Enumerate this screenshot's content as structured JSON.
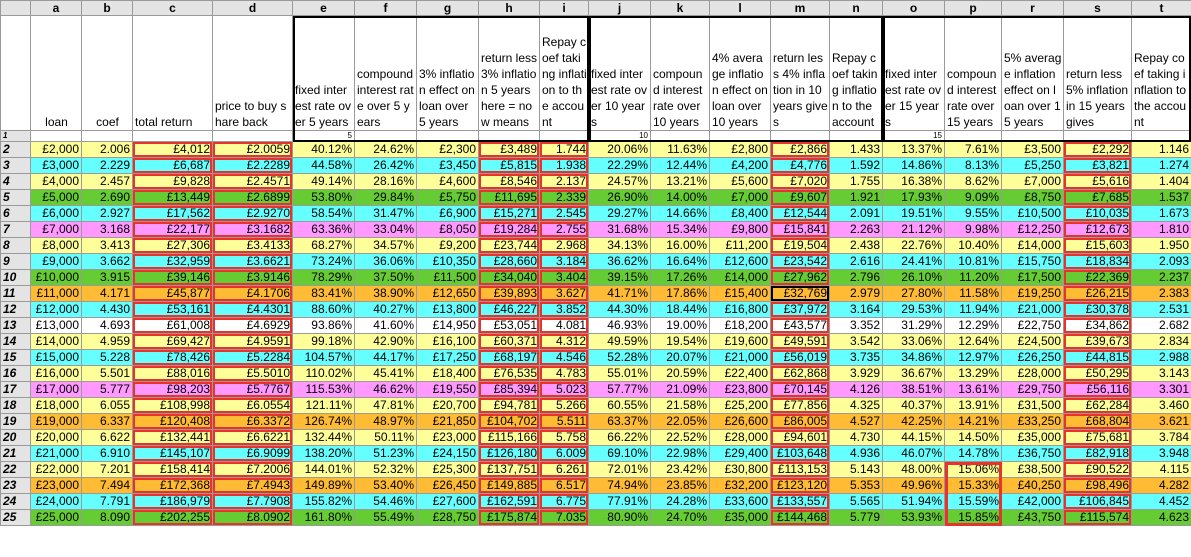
{
  "columns": [
    "a",
    "b",
    "c",
    "d",
    "e",
    "f",
    "g",
    "h",
    "i",
    "j",
    "k",
    "l",
    "m",
    "n",
    "o",
    "p",
    "r",
    "s",
    "t"
  ],
  "labels": [
    "loan",
    "coef",
    "total return",
    "price to buy share back",
    "fixed interest rate over 5 years",
    "compound interest rate over 5 years",
    "3% inflation effect on loan over 5 years",
    "return less 3% inflation 5 years here = now means",
    "Repay coef taking inflation to the account",
    "fixed interest rate over 10 years",
    "compound interest rate over 10 years",
    "4% average inflation effect on loan over 10 years",
    "return less 4% inflation in 10 years gives",
    "Repay coef taking inflation to the account",
    "fixed interest rate over 15 years",
    "compound interest rate over 15 years",
    "5% average inflation effect on loan over 15 years",
    "return less 5% inflation in 15 years gives",
    "Repay coef taking inflation to the account"
  ],
  "index_row": {
    "row": "1",
    "e": "5",
    "j": "10",
    "o": "15"
  },
  "colors": {
    "yellow": "#ffff99",
    "cyan": "#66ffff",
    "green": "#66cc33",
    "white": "#ffffff",
    "pink": "#ff99ff",
    "orange": "#ffbb33",
    "red_border": "#e8322c"
  },
  "rows": [
    {
      "n": "2",
      "color": "yellow",
      "cells": [
        "£2,000",
        "2.006",
        "£4,012",
        "£2.0059",
        "40.12%",
        "24.62%",
        "£2,300",
        "£3,489",
        "1.744",
        "20.06%",
        "11.63%",
        "£2,800",
        "£2,866",
        "1.433",
        "13.37%",
        "7.61%",
        "£3,500",
        "£2,292",
        "1.146"
      ]
    },
    {
      "n": "3",
      "color": "cyan",
      "cells": [
        "£3,000",
        "2.229",
        "£6,687",
        "£2.2289",
        "44.58%",
        "26.42%",
        "£3,450",
        "£5,815",
        "1.938",
        "22.29%",
        "12.44%",
        "£4,200",
        "£4,776",
        "1.592",
        "14.86%",
        "8.13%",
        "£5,250",
        "£3,821",
        "1.274"
      ]
    },
    {
      "n": "4",
      "color": "yellow",
      "cells": [
        "£4,000",
        "2.457",
        "£9,828",
        "£2.4571",
        "49.14%",
        "28.16%",
        "£4,600",
        "£8,546",
        "2.137",
        "24.57%",
        "13.21%",
        "£5,600",
        "£7,020",
        "1.755",
        "16.38%",
        "8.62%",
        "£7,000",
        "£5,616",
        "1.404"
      ]
    },
    {
      "n": "5",
      "color": "green",
      "cells": [
        "£5,000",
        "2.690",
        "£13,449",
        "£2.6899",
        "53.80%",
        "29.84%",
        "£5,750",
        "£11,695",
        "2.339",
        "26.90%",
        "14.00%",
        "£7,000",
        "£9,607",
        "1.921",
        "17.93%",
        "9.09%",
        "£8,750",
        "£7,685",
        "1.537"
      ]
    },
    {
      "n": "6",
      "color": "cyan",
      "cells": [
        "£6,000",
        "2.927",
        "£17,562",
        "£2.9270",
        "58.54%",
        "31.47%",
        "£6,900",
        "£15,271",
        "2.545",
        "29.27%",
        "14.66%",
        "£8,400",
        "£12,544",
        "2.091",
        "19.51%",
        "9.55%",
        "£10,500",
        "£10,035",
        "1.673"
      ]
    },
    {
      "n": "7",
      "color": "pink",
      "cells": [
        "£7,000",
        "3.168",
        "£22,177",
        "£3.1682",
        "63.36%",
        "33.04%",
        "£8,050",
        "£19,284",
        "2.755",
        "31.68%",
        "15.34%",
        "£9,800",
        "£15,841",
        "2.263",
        "21.12%",
        "9.98%",
        "£12,250",
        "£12,673",
        "1.810"
      ]
    },
    {
      "n": "8",
      "color": "yellow",
      "cells": [
        "£8,000",
        "3.413",
        "£27,306",
        "£3.4133",
        "68.27%",
        "34.57%",
        "£9,200",
        "£23,744",
        "2.968",
        "34.13%",
        "16.00%",
        "£11,200",
        "£19,504",
        "2.438",
        "22.76%",
        "10.40%",
        "£14,000",
        "£15,603",
        "1.950"
      ]
    },
    {
      "n": "9",
      "color": "cyan",
      "cells": [
        "£9,000",
        "3.662",
        "£32,959",
        "£3.6621",
        "73.24%",
        "36.06%",
        "£10,350",
        "£28,660",
        "3.184",
        "36.62%",
        "16.64%",
        "£12,600",
        "£23,542",
        "2.616",
        "24.41%",
        "10.81%",
        "£15,750",
        "£18,834",
        "2.093"
      ]
    },
    {
      "n": "10",
      "color": "green",
      "cells": [
        "£10,000",
        "3.915",
        "£39,146",
        "£3.9146",
        "78.29%",
        "37.50%",
        "£11,500",
        "£34,040",
        "3.404",
        "39.15%",
        "17.26%",
        "£14,000",
        "£27,962",
        "2.796",
        "26.10%",
        "11.20%",
        "£17,500",
        "£22,369",
        "2.237"
      ]
    },
    {
      "n": "11",
      "color": "orange",
      "cells": [
        "£11,000",
        "4.171",
        "£45,877",
        "£4.1706",
        "83.41%",
        "38.90%",
        "£12,650",
        "£39,893",
        "3.627",
        "41.71%",
        "17.86%",
        "£15,400",
        "£32,769",
        "2.979",
        "27.80%",
        "11.58%",
        "£19,250",
        "£26,215",
        "2.383"
      ]
    },
    {
      "n": "12",
      "color": "cyan",
      "cells": [
        "£12,000",
        "4.430",
        "£53,161",
        "£4.4301",
        "88.60%",
        "40.27%",
        "£13,800",
        "£46,227",
        "3.852",
        "44.30%",
        "18.44%",
        "£16,800",
        "£37,972",
        "3.164",
        "29.53%",
        "11.94%",
        "£21,000",
        "£30,378",
        "2.531"
      ]
    },
    {
      "n": "13",
      "color": "white",
      "cells": [
        "£13,000",
        "4.693",
        "£61,008",
        "£4.6929",
        "93.86%",
        "41.60%",
        "£14,950",
        "£53,051",
        "4.081",
        "46.93%",
        "19.00%",
        "£18,200",
        "£43,577",
        "3.352",
        "31.29%",
        "12.29%",
        "£22,750",
        "£34,862",
        "2.682"
      ]
    },
    {
      "n": "14",
      "color": "yellow",
      "cells": [
        "£14,000",
        "4.959",
        "£69,427",
        "£4.9591",
        "99.18%",
        "42.90%",
        "£16,100",
        "£60,371",
        "4.312",
        "49.59%",
        "19.54%",
        "£19,600",
        "£49,591",
        "3.542",
        "33.06%",
        "12.64%",
        "£24,500",
        "£39,673",
        "2.834"
      ]
    },
    {
      "n": "15",
      "color": "cyan",
      "cells": [
        "£15,000",
        "5.228",
        "£78,426",
        "£5.2284",
        "104.57%",
        "44.17%",
        "£17,250",
        "£68,197",
        "4.546",
        "52.28%",
        "20.07%",
        "£21,000",
        "£56,019",
        "3.735",
        "34.86%",
        "12.97%",
        "£26,250",
        "£44,815",
        "2.988"
      ]
    },
    {
      "n": "16",
      "color": "yellow",
      "cells": [
        "£16,000",
        "5.501",
        "£88,016",
        "£5.5010",
        "110.02%",
        "45.41%",
        "£18,400",
        "£76,535",
        "4.783",
        "55.01%",
        "20.59%",
        "£22,400",
        "£62,868",
        "3.929",
        "36.67%",
        "13.29%",
        "£28,000",
        "£50,295",
        "3.143"
      ]
    },
    {
      "n": "17",
      "color": "pink",
      "cells": [
        "£17,000",
        "5.777",
        "£98,203",
        "£5.7767",
        "115.53%",
        "46.62%",
        "£19,550",
        "£85,394",
        "5.023",
        "57.77%",
        "21.09%",
        "£23,800",
        "£70,145",
        "4.126",
        "38.51%",
        "13.61%",
        "£29,750",
        "£56,116",
        "3.301"
      ]
    },
    {
      "n": "18",
      "color": "yellow",
      "cells": [
        "£18,000",
        "6.055",
        "£108,998",
        "£6.0554",
        "121.11%",
        "47.81%",
        "£20,700",
        "£94,781",
        "5.266",
        "60.55%",
        "21.58%",
        "£25,200",
        "£77,856",
        "4.325",
        "40.37%",
        "13.91%",
        "£31,500",
        "£62,284",
        "3.460"
      ]
    },
    {
      "n": "19",
      "color": "orange",
      "cells": [
        "£19,000",
        "6.337",
        "£120,408",
        "£6.3372",
        "126.74%",
        "48.97%",
        "£21,850",
        "£104,702",
        "5.511",
        "63.37%",
        "22.05%",
        "£26,600",
        "£86,005",
        "4.527",
        "42.25%",
        "14.21%",
        "£33,250",
        "£68,804",
        "3.621"
      ]
    },
    {
      "n": "20",
      "color": "yellow",
      "cells": [
        "£20,000",
        "6.622",
        "£132,441",
        "£6.6221",
        "132.44%",
        "50.11%",
        "£23,000",
        "£115,166",
        "5.758",
        "66.22%",
        "22.52%",
        "£28,000",
        "£94,601",
        "4.730",
        "44.15%",
        "14.50%",
        "£35,000",
        "£75,681",
        "3.784"
      ]
    },
    {
      "n": "21",
      "color": "cyan",
      "cells": [
        "£21,000",
        "6.910",
        "£145,107",
        "£6.9099",
        "138.20%",
        "51.23%",
        "£24,150",
        "£126,180",
        "6.009",
        "69.10%",
        "22.98%",
        "£29,400",
        "£103,648",
        "4.936",
        "46.07%",
        "14.78%",
        "£36,750",
        "£82,918",
        "3.948"
      ]
    },
    {
      "n": "22",
      "color": "yellow",
      "cells": [
        "£22,000",
        "7.201",
        "£158,414",
        "£7.2006",
        "144.01%",
        "52.32%",
        "£25,300",
        "£137,751",
        "6.261",
        "72.01%",
        "23.42%",
        "£30,800",
        "£113,153",
        "5.143",
        "48.00%",
        "15.06%",
        "£38,500",
        "£90,522",
        "4.115"
      ]
    },
    {
      "n": "23",
      "color": "orange",
      "cells": [
        "£23,000",
        "7.494",
        "£172,368",
        "£7.4943",
        "149.89%",
        "53.40%",
        "£26,450",
        "£149,885",
        "6.517",
        "74.94%",
        "23.85%",
        "£32,200",
        "£123,120",
        "5.353",
        "49.96%",
        "15.33%",
        "£40,250",
        "£98,496",
        "4.282"
      ]
    },
    {
      "n": "24",
      "color": "cyan",
      "cells": [
        "£24,000",
        "7.791",
        "£186,979",
        "£7.7908",
        "155.82%",
        "54.46%",
        "£27,600",
        "£162,591",
        "6.775",
        "77.91%",
        "24.28%",
        "£33,600",
        "£133,557",
        "5.565",
        "51.94%",
        "15.59%",
        "£42,000",
        "£106,845",
        "4.452"
      ]
    },
    {
      "n": "25",
      "color": "green",
      "cells": [
        "£25,000",
        "8.090",
        "£202,255",
        "£8.0902",
        "161.80%",
        "55.49%",
        "£28,750",
        "£175,874",
        "7.035",
        "80.90%",
        "24.70%",
        "£35,000",
        "£144,468",
        "5.779",
        "53.93%",
        "15.85%",
        "£43,750",
        "£115,574",
        "4.623"
      ]
    }
  ]
}
